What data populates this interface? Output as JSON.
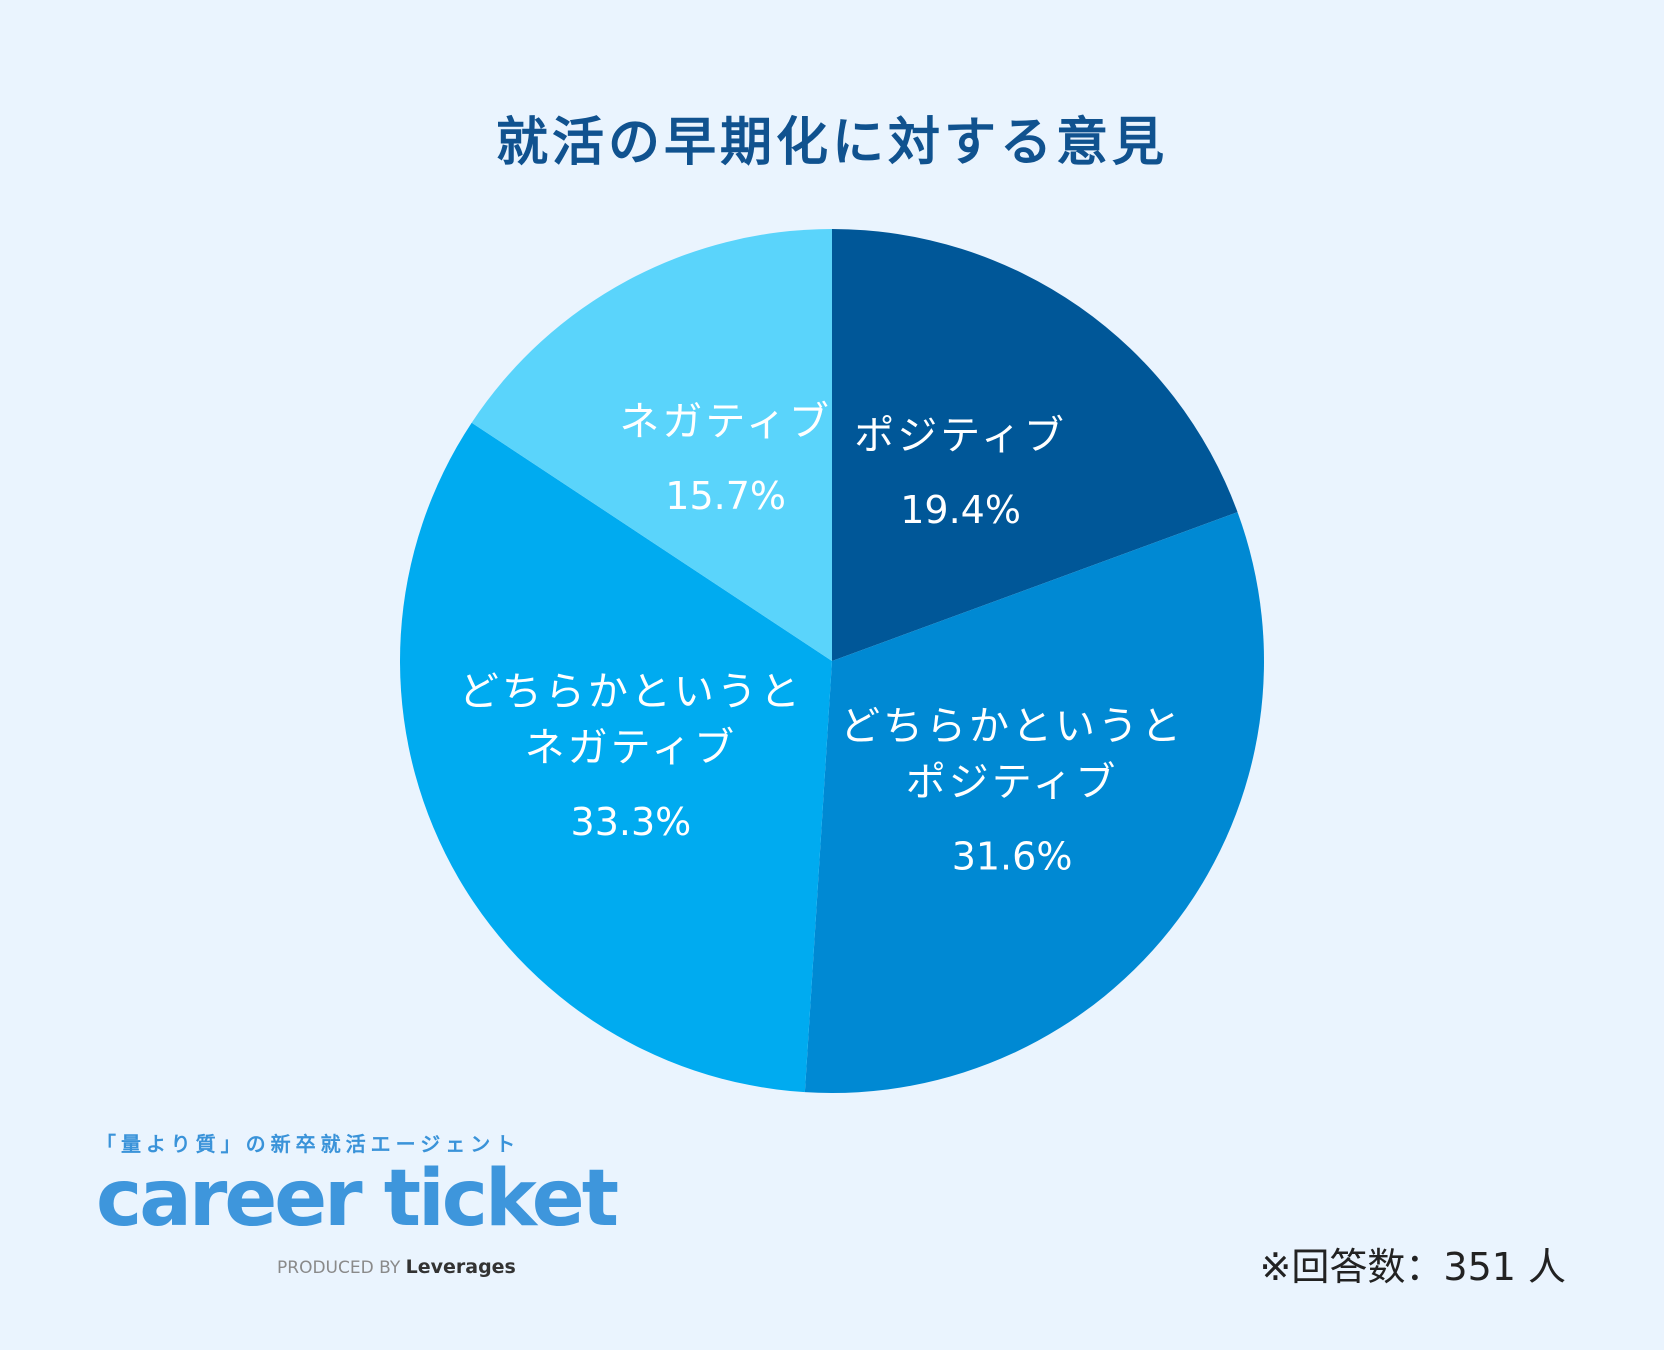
{
  "chart_data": {
    "type": "pie",
    "title": "就活の早期化に対する意見",
    "slices": [
      {
        "label": "ポジティブ",
        "label_lines": [
          "ポジティブ"
        ],
        "value": 19.4,
        "value_label": "19.4%",
        "color": "#005798"
      },
      {
        "label": "どちらかというとポジティブ",
        "label_lines": [
          "どちらかというと",
          "ポジティブ"
        ],
        "value": 31.6,
        "value_label": "31.6%",
        "color": "#0089d3"
      },
      {
        "label": "どちらかというとネガティブ",
        "label_lines": [
          "どちらかというと",
          "ネガティブ"
        ],
        "value": 33.3,
        "value_label": "33.3%",
        "color": "#00abf0"
      },
      {
        "label": "ネガティブ",
        "label_lines": [
          "ネガティブ"
        ],
        "value": 15.7,
        "value_label": "15.7%",
        "color": "#5ad4fb"
      }
    ]
  },
  "brand": {
    "tagline": "「量より質」の新卒就活エージェント",
    "logo": "career ticket",
    "produced_by": "PRODUCED BY",
    "company": "Leverages"
  },
  "footnote": "※回答数：351 人",
  "colors": {
    "background": "#eaf4fe",
    "title": "#10528f",
    "brand": "#3e96dc"
  }
}
